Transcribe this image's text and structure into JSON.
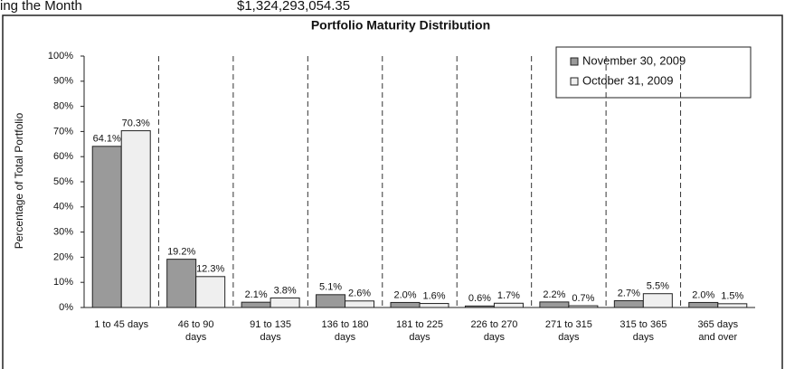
{
  "header": {
    "left": "ing the Month",
    "right": "$1,324,293,054.35"
  },
  "chart_data": {
    "type": "bar",
    "title": "Portfolio Maturity Distribution",
    "y_label": "Percentage of Total Portfolio",
    "categories": [
      "1 to 45 days",
      "46 to 90 days",
      "91 to 135 days",
      "136 to 180 days",
      "181 to 225 days",
      "226 to 270 days",
      "271 to 315 days",
      "315 to 365 days",
      "365 days and over"
    ],
    "series": [
      {
        "name": "November 30, 2009",
        "color": "#9a9a9a",
        "values": [
          64.1,
          19.2,
          2.1,
          5.1,
          2.0,
          0.6,
          2.2,
          2.7,
          2.0
        ],
        "value_labels": [
          "64.1%",
          "19.2%",
          "2.1%",
          "5.1%",
          "2.0%",
          "0.6%",
          "2.2%",
          "2.7%",
          "2.0%"
        ]
      },
      {
        "name": "October 31, 2009",
        "color": "#efefef",
        "values": [
          70.3,
          12.3,
          3.8,
          2.6,
          1.6,
          1.7,
          0.7,
          5.5,
          1.5
        ],
        "value_labels": [
          "70.3%",
          "12.3%",
          "3.8%",
          "2.6%",
          "1.6%",
          "1.7%",
          "0.7%",
          "5.5%",
          "1.5%"
        ]
      }
    ],
    "ylim": [
      0,
      100
    ],
    "yticks": [
      {
        "value": 0,
        "label": "0%"
      },
      {
        "value": 10,
        "label": "10%"
      },
      {
        "value": 20,
        "label": "20%"
      },
      {
        "value": 30,
        "label": "30%"
      },
      {
        "value": 40,
        "label": "40%"
      },
      {
        "value": 50,
        "label": "50%"
      },
      {
        "value": 60,
        "label": "60%"
      },
      {
        "value": 70,
        "label": "70%"
      },
      {
        "value": 80,
        "label": "80%"
      },
      {
        "value": 90,
        "label": "90%"
      },
      {
        "value": 100,
        "label": "100%"
      }
    ],
    "legend": "upper right"
  }
}
